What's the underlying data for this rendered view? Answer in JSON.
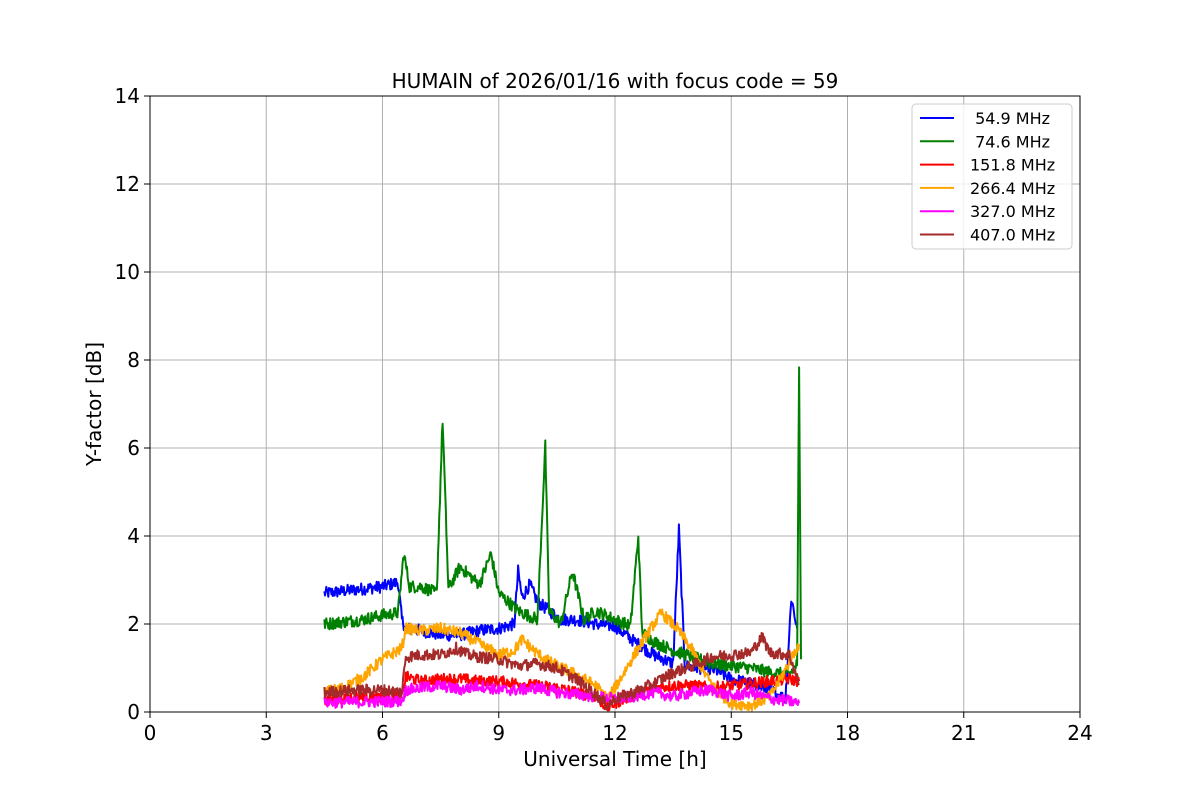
{
  "chart_data": {
    "type": "line",
    "title": "HUMAIN of 2026/01/16 with focus code = 59",
    "xlabel": "Universal Time [h]",
    "ylabel": "Y-factor [dB]",
    "xlim": [
      0,
      24
    ],
    "ylim": [
      0,
      14
    ],
    "xticks": [
      "0",
      "3",
      "6",
      "9",
      "12",
      "15",
      "18",
      "21",
      "24"
    ],
    "yticks": [
      "0",
      "2",
      "4",
      "6",
      "8",
      "10",
      "12",
      "14"
    ],
    "grid": true,
    "legend_position": "top-right",
    "series": [
      {
        "name": " 54.9 MHz",
        "color": "#0000ff",
        "x": [
          4.5,
          5.0,
          5.5,
          6.0,
          6.4,
          6.5,
          6.6,
          7.0,
          7.5,
          8.0,
          8.5,
          9.0,
          9.4,
          9.5,
          9.6,
          9.8,
          10.0,
          10.3,
          10.6,
          11.0,
          11.5,
          12.0,
          12.5,
          13.0,
          13.5,
          13.65,
          13.8,
          14.2,
          14.6,
          15.0,
          15.5,
          16.0,
          16.4,
          16.55,
          16.7
        ],
        "y": [
          2.7,
          2.75,
          2.8,
          2.85,
          2.95,
          2.1,
          1.9,
          1.85,
          1.75,
          1.75,
          1.85,
          1.9,
          2.0,
          3.2,
          2.6,
          2.9,
          2.5,
          2.3,
          2.1,
          2.1,
          2.0,
          1.95,
          1.6,
          1.3,
          1.1,
          4.15,
          1.05,
          1.0,
          0.95,
          0.75,
          0.65,
          0.5,
          0.3,
          2.6,
          1.9
        ]
      },
      {
        "name": " 74.6 MHz",
        "color": "#008000",
        "x": [
          4.5,
          5.0,
          5.5,
          6.0,
          6.4,
          6.55,
          6.7,
          7.0,
          7.4,
          7.55,
          7.7,
          8.0,
          8.5,
          8.8,
          9.0,
          9.5,
          10.0,
          10.2,
          10.3,
          10.6,
          10.9,
          11.2,
          11.5,
          12.0,
          12.4,
          12.6,
          12.7,
          13.0,
          13.5,
          14.0,
          14.5,
          15.0,
          15.5,
          16.0,
          16.5,
          16.7,
          16.75,
          16.8
        ],
        "y": [
          2.0,
          2.05,
          2.1,
          2.2,
          2.25,
          3.6,
          2.85,
          2.85,
          2.7,
          6.65,
          2.8,
          3.3,
          2.9,
          3.6,
          2.7,
          2.3,
          2.1,
          6.05,
          2.3,
          2.0,
          3.2,
          2.1,
          2.3,
          2.1,
          1.95,
          4.0,
          1.8,
          1.6,
          1.4,
          1.25,
          1.1,
          1.05,
          1.0,
          0.9,
          0.85,
          1.1,
          7.75,
          1.2
        ]
      },
      {
        "name": "151.8 MHz",
        "color": "#ff0000",
        "x": [
          4.5,
          5.0,
          5.5,
          6.0,
          6.5,
          6.6,
          7.0,
          7.5,
          8.0,
          8.5,
          9.0,
          9.5,
          10.0,
          10.5,
          11.0,
          11.5,
          11.8,
          12.0,
          12.5,
          13.0,
          13.5,
          14.0,
          14.5,
          15.0,
          15.5,
          16.0,
          16.5,
          16.75
        ],
        "y": [
          0.3,
          0.32,
          0.35,
          0.35,
          0.35,
          0.8,
          0.7,
          0.75,
          0.75,
          0.7,
          0.7,
          0.65,
          0.6,
          0.55,
          0.45,
          0.35,
          0.1,
          0.2,
          0.4,
          0.55,
          0.6,
          0.6,
          0.55,
          0.6,
          0.65,
          0.7,
          0.75,
          0.7
        ]
      },
      {
        "name": "266.4 MHz",
        "color": "#ffa500",
        "x": [
          4.5,
          5.0,
          5.5,
          6.0,
          6.5,
          6.6,
          7.0,
          7.5,
          8.0,
          8.5,
          9.0,
          9.4,
          9.6,
          9.9,
          10.2,
          10.5,
          11.0,
          11.5,
          11.8,
          12.0,
          12.5,
          13.0,
          13.2,
          13.6,
          14.0,
          14.3,
          14.6,
          15.0,
          15.5,
          16.0,
          16.3,
          16.6,
          16.75
        ],
        "y": [
          0.45,
          0.55,
          0.8,
          1.2,
          1.45,
          1.9,
          1.85,
          1.9,
          1.8,
          1.55,
          1.3,
          1.4,
          1.65,
          1.4,
          1.2,
          1.05,
          0.85,
          0.6,
          0.3,
          0.55,
          1.3,
          2.0,
          2.25,
          1.9,
          1.4,
          0.9,
          0.5,
          0.2,
          0.15,
          0.35,
          0.8,
          1.3,
          1.55
        ]
      },
      {
        "name": "327.0 MHz",
        "color": "#ff00ff",
        "x": [
          4.5,
          5.0,
          5.5,
          6.0,
          6.5,
          6.6,
          7.0,
          7.5,
          8.0,
          8.5,
          9.0,
          9.5,
          10.0,
          10.5,
          11.0,
          11.5,
          12.0,
          12.5,
          13.0,
          13.5,
          14.0,
          14.5,
          15.0,
          15.5,
          16.0,
          16.5,
          16.75
        ],
        "y": [
          0.22,
          0.22,
          0.23,
          0.24,
          0.25,
          0.5,
          0.55,
          0.6,
          0.5,
          0.6,
          0.5,
          0.5,
          0.55,
          0.45,
          0.4,
          0.35,
          0.3,
          0.35,
          0.45,
          0.35,
          0.45,
          0.5,
          0.35,
          0.45,
          0.3,
          0.25,
          0.2
        ]
      },
      {
        "name": "407.0 MHz",
        "color": "#a52a2a",
        "x": [
          4.5,
          5.0,
          5.5,
          6.0,
          6.5,
          6.6,
          7.0,
          7.5,
          7.9,
          8.2,
          8.5,
          9.0,
          9.5,
          10.0,
          10.5,
          11.0,
          11.5,
          11.8,
          12.0,
          12.5,
          13.0,
          13.5,
          14.0,
          14.5,
          15.0,
          15.5,
          15.8,
          16.0,
          16.5,
          16.75
        ],
        "y": [
          0.45,
          0.48,
          0.5,
          0.5,
          0.45,
          1.25,
          1.3,
          1.3,
          1.45,
          1.3,
          1.25,
          1.2,
          1.05,
          1.1,
          1.0,
          0.75,
          0.4,
          0.15,
          0.3,
          0.45,
          0.65,
          0.9,
          1.05,
          1.25,
          1.3,
          1.35,
          1.7,
          1.35,
          1.3,
          0.65
        ]
      }
    ]
  }
}
